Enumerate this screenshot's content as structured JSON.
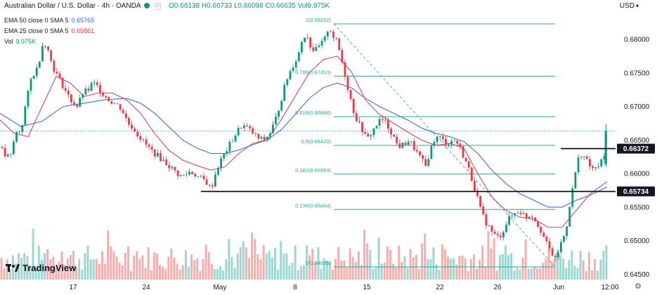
{
  "header": {
    "title": "Australian Dollar / U.S. Dollar · 4h · OANDA",
    "ohlc": "O0.66138 H0.66733 L0.66098 C0.66635 Vol9.975K",
    "ema50_label": "EMA 50 close 0 SMA 5",
    "ema50_value": "0.65765",
    "ema25_label": "EMA 25 close 0 SMA 5",
    "ema25_value": "0.65861",
    "vol_label": "Vol",
    "vol_value": "9.975K"
  },
  "currency": "USD",
  "logo_text": "TradingView",
  "chart_data": {
    "type": "candlestick",
    "ylim": [
      0.6442,
      0.6842
    ],
    "y_ticks": [
      "0.68000",
      "0.67500",
      "0.67000",
      "0.66500",
      "0.66000",
      "0.65500",
      "0.65000",
      "0.64500"
    ],
    "x_ticks": [
      "17",
      "24",
      "May",
      "8",
      "15",
      "22",
      "26",
      "Jun",
      "12:00"
    ],
    "fib_levels": [
      {
        "label": "1(0.68232)",
        "value": 0.68232
      },
      {
        "label": "0.786(0.67453)",
        "value": 0.67453
      },
      {
        "label": "0.618(0.66848)",
        "value": 0.66848
      },
      {
        "label": "0.5(0.66420)",
        "value": 0.6642
      },
      {
        "label": "0.382(0.65993)",
        "value": 0.65993
      },
      {
        "label": "0.236(0.65464)",
        "value": 0.65464
      },
      {
        "label": "0(0.64609)",
        "value": 0.64609
      }
    ],
    "horizontal_levels": [
      {
        "label": "0.66372",
        "value": 0.66372
      },
      {
        "label": "0.65734",
        "value": 0.65734
      }
    ],
    "price_path": [
      [
        0,
        0.664
      ],
      [
        8,
        0.6625
      ],
      [
        15,
        0.6625
      ],
      [
        22,
        0.666
      ],
      [
        30,
        0.6665
      ],
      [
        36,
        0.67
      ],
      [
        40,
        0.672
      ],
      [
        45,
        0.6745
      ],
      [
        52,
        0.6755
      ],
      [
        56,
        0.677
      ],
      [
        62,
        0.68
      ],
      [
        68,
        0.6785
      ],
      [
        75,
        0.676
      ],
      [
        82,
        0.6745
      ],
      [
        90,
        0.673
      ],
      [
        100,
        0.671
      ],
      [
        110,
        0.67
      ],
      [
        118,
        0.672
      ],
      [
        126,
        0.6725
      ],
      [
        132,
        0.6735
      ],
      [
        138,
        0.673
      ],
      [
        146,
        0.672
      ],
      [
        155,
        0.671
      ],
      [
        162,
        0.6705
      ],
      [
        170,
        0.67
      ],
      [
        176,
        0.669
      ],
      [
        182,
        0.6675
      ],
      [
        188,
        0.667
      ],
      [
        195,
        0.666
      ],
      [
        202,
        0.665
      ],
      [
        210,
        0.664
      ],
      [
        218,
        0.6632
      ],
      [
        226,
        0.6625
      ],
      [
        234,
        0.6618
      ],
      [
        240,
        0.6612
      ],
      [
        246,
        0.6606
      ],
      [
        252,
        0.66
      ],
      [
        258,
        0.6596
      ],
      [
        264,
        0.6598
      ],
      [
        270,
        0.6603
      ],
      [
        276,
        0.66
      ],
      [
        282,
        0.6595
      ],
      [
        290,
        0.659
      ],
      [
        296,
        0.6585
      ],
      [
        300,
        0.6575
      ],
      [
        305,
        0.6595
      ],
      [
        312,
        0.6615
      ],
      [
        320,
        0.663
      ],
      [
        328,
        0.6645
      ],
      [
        336,
        0.666
      ],
      [
        344,
        0.6672
      ],
      [
        352,
        0.6668
      ],
      [
        360,
        0.666
      ],
      [
        368,
        0.6652
      ],
      [
        376,
        0.665
      ],
      [
        384,
        0.666
      ],
      [
        392,
        0.668
      ],
      [
        400,
        0.671
      ],
      [
        408,
        0.674
      ],
      [
        416,
        0.676
      ],
      [
        424,
        0.6775
      ],
      [
        430,
        0.68
      ],
      [
        436,
        0.681
      ],
      [
        442,
        0.679
      ],
      [
        448,
        0.6782
      ],
      [
        455,
        0.679
      ],
      [
        462,
        0.68
      ],
      [
        468,
        0.682
      ],
      [
        474,
        0.6805
      ],
      [
        480,
        0.6795
      ],
      [
        486,
        0.677
      ],
      [
        492,
        0.6742
      ],
      [
        498,
        0.6715
      ],
      [
        504,
        0.669
      ],
      [
        510,
        0.6675
      ],
      [
        516,
        0.6665
      ],
      [
        522,
        0.665
      ],
      [
        528,
        0.666
      ],
      [
        534,
        0.667
      ],
      [
        540,
        0.6678
      ],
      [
        546,
        0.668
      ],
      [
        552,
        0.667
      ],
      [
        558,
        0.666
      ],
      [
        564,
        0.6645
      ],
      [
        570,
        0.664
      ],
      [
        576,
        0.6645
      ],
      [
        582,
        0.665
      ],
      [
        588,
        0.664
      ],
      [
        594,
        0.663
      ],
      [
        600,
        0.662
      ],
      [
        606,
        0.661
      ],
      [
        612,
        0.6635
      ],
      [
        618,
        0.665
      ],
      [
        624,
        0.6655
      ],
      [
        630,
        0.665
      ],
      [
        636,
        0.6645
      ],
      [
        642,
        0.6648
      ],
      [
        648,
        0.665
      ],
      [
        654,
        0.664
      ],
      [
        660,
        0.6625
      ],
      [
        666,
        0.661
      ],
      [
        672,
        0.659
      ],
      [
        678,
        0.657
      ],
      [
        684,
        0.6545
      ],
      [
        690,
        0.653
      ],
      [
        696,
        0.652
      ],
      [
        702,
        0.651
      ],
      [
        708,
        0.6505
      ],
      [
        714,
        0.651
      ],
      [
        720,
        0.6525
      ],
      [
        726,
        0.6535
      ],
      [
        732,
        0.654
      ],
      [
        738,
        0.6545
      ],
      [
        744,
        0.654
      ],
      [
        750,
        0.6535
      ],
      [
        756,
        0.654
      ],
      [
        762,
        0.653
      ],
      [
        768,
        0.652
      ],
      [
        774,
        0.6505
      ],
      [
        780,
        0.649
      ],
      [
        786,
        0.648
      ],
      [
        790,
        0.647
      ],
      [
        796,
        0.649
      ],
      [
        802,
        0.6505
      ],
      [
        808,
        0.653
      ],
      [
        812,
        0.6565
      ],
      [
        816,
        0.658
      ],
      [
        820,
        0.661
      ],
      [
        824,
        0.6625
      ],
      [
        828,
        0.663
      ],
      [
        834,
        0.662
      ],
      [
        840,
        0.661
      ],
      [
        846,
        0.6605
      ],
      [
        852,
        0.6612
      ],
      [
        856,
        0.6618
      ],
      [
        860,
        0.6625
      ],
      [
        864,
        0.6664
      ]
    ],
    "ema25_path": [
      [
        0,
        0.668
      ],
      [
        20,
        0.666
      ],
      [
        40,
        0.6655
      ],
      [
        60,
        0.67
      ],
      [
        80,
        0.6745
      ],
      [
        100,
        0.6735
      ],
      [
        120,
        0.6715
      ],
      [
        140,
        0.672
      ],
      [
        160,
        0.672
      ],
      [
        180,
        0.671
      ],
      [
        200,
        0.669
      ],
      [
        220,
        0.666
      ],
      [
        240,
        0.6635
      ],
      [
        260,
        0.662
      ],
      [
        280,
        0.6612
      ],
      [
        300,
        0.6605
      ],
      [
        320,
        0.661
      ],
      [
        340,
        0.663
      ],
      [
        360,
        0.6645
      ],
      [
        380,
        0.665
      ],
      [
        400,
        0.668
      ],
      [
        420,
        0.6715
      ],
      [
        440,
        0.675
      ],
      [
        460,
        0.677
      ],
      [
        480,
        0.6775
      ],
      [
        500,
        0.6752
      ],
      [
        520,
        0.671
      ],
      [
        540,
        0.6688
      ],
      [
        560,
        0.6675
      ],
      [
        580,
        0.6662
      ],
      [
        600,
        0.665
      ],
      [
        620,
        0.6642
      ],
      [
        640,
        0.6645
      ],
      [
        660,
        0.6638
      ],
      [
        680,
        0.66
      ],
      [
        700,
        0.6565
      ],
      [
        720,
        0.6545
      ],
      [
        740,
        0.6535
      ],
      [
        760,
        0.6532
      ],
      [
        780,
        0.652
      ],
      [
        800,
        0.652
      ],
      [
        820,
        0.6545
      ],
      [
        840,
        0.657
      ],
      [
        864,
        0.6588
      ]
    ],
    "ema50_path": [
      [
        0,
        0.669
      ],
      [
        30,
        0.667
      ],
      [
        60,
        0.6678
      ],
      [
        90,
        0.67
      ],
      [
        120,
        0.6705
      ],
      [
        150,
        0.671
      ],
      [
        180,
        0.6712
      ],
      [
        200,
        0.6705
      ],
      [
        220,
        0.669
      ],
      [
        240,
        0.667
      ],
      [
        260,
        0.665
      ],
      [
        280,
        0.6638
      ],
      [
        300,
        0.663
      ],
      [
        320,
        0.663
      ],
      [
        340,
        0.6635
      ],
      [
        360,
        0.6643
      ],
      [
        380,
        0.665
      ],
      [
        400,
        0.6665
      ],
      [
        420,
        0.6688
      ],
      [
        440,
        0.6712
      ],
      [
        460,
        0.6728
      ],
      [
        480,
        0.6735
      ],
      [
        500,
        0.6728
      ],
      [
        520,
        0.6712
      ],
      [
        540,
        0.67
      ],
      [
        560,
        0.669
      ],
      [
        580,
        0.668
      ],
      [
        600,
        0.6668
      ],
      [
        620,
        0.666
      ],
      [
        640,
        0.6655
      ],
      [
        660,
        0.6648
      ],
      [
        680,
        0.663
      ],
      [
        700,
        0.6605
      ],
      [
        720,
        0.6585
      ],
      [
        740,
        0.657
      ],
      [
        760,
        0.656
      ],
      [
        780,
        0.655
      ],
      [
        800,
        0.655
      ],
      [
        820,
        0.656
      ],
      [
        840,
        0.6568
      ],
      [
        864,
        0.658
      ]
    ]
  }
}
